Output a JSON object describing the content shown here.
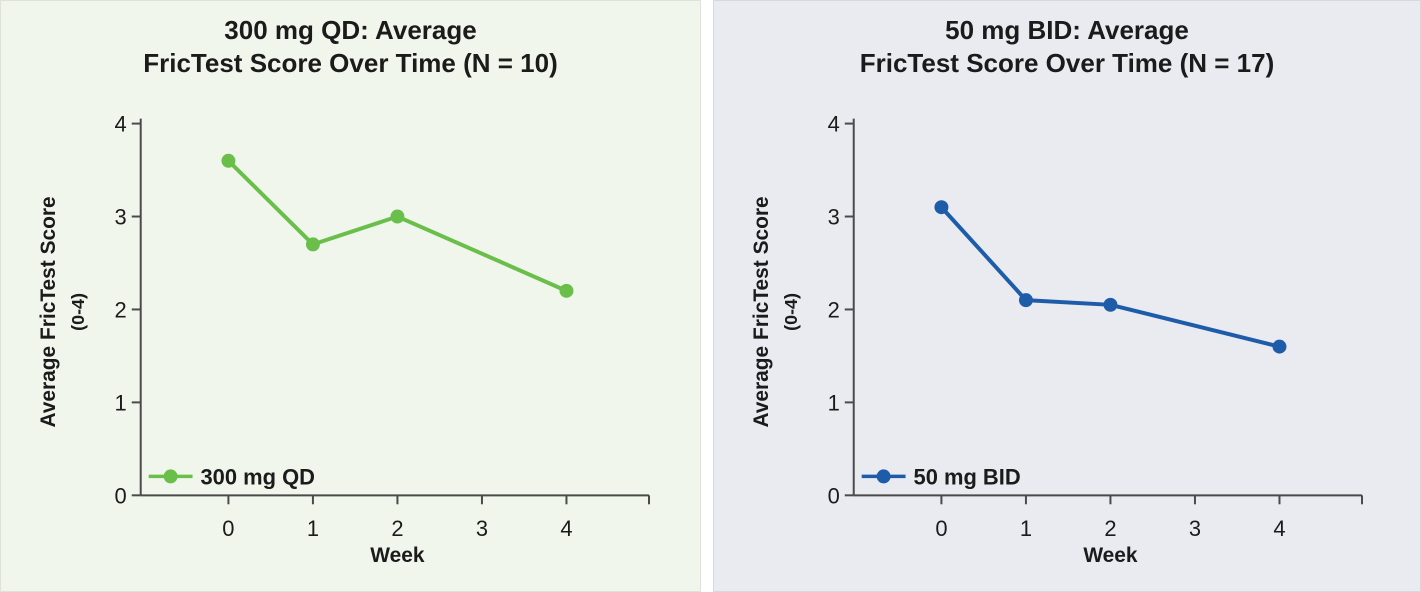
{
  "page": {
    "background": "#ffffff"
  },
  "chart_data": [
    {
      "type": "line",
      "title_line1": "300 mg QD: Average",
      "title_line2": "FricTest Score Over Time (N = 10)",
      "xlabel": "Week",
      "ylabel": "Average FricTest Score",
      "ylabel_sub": "(0-4)",
      "xticks": [
        "0",
        "1",
        "2",
        "3",
        "4"
      ],
      "yticks": [
        "0",
        "1",
        "2",
        "3",
        "4"
      ],
      "ylim": [
        0,
        4
      ],
      "grid": false,
      "legend": {
        "label": "300 mg QD",
        "position": "bottom-left"
      },
      "series": [
        {
          "name": "300 mg QD",
          "x": [
            0,
            1,
            2,
            4
          ],
          "values": [
            3.6,
            2.7,
            3.0,
            2.2
          ],
          "color": "#6abf4a"
        }
      ],
      "panel_background": "#f1f6ed",
      "axis_color": "#4a4a4a",
      "text_color": "#1b1b1b"
    },
    {
      "type": "line",
      "title_line1": "50 mg BID: Average",
      "title_line2": "FricTest Score Over Time (N = 17)",
      "xlabel": "Week",
      "ylabel": "Average FricTest Score",
      "ylabel_sub": "(0-4)",
      "xticks": [
        "0",
        "1",
        "2",
        "3",
        "4"
      ],
      "yticks": [
        "0",
        "1",
        "2",
        "3",
        "4"
      ],
      "ylim": [
        0,
        4
      ],
      "grid": false,
      "legend": {
        "label": "50 mg BID",
        "position": "bottom-left"
      },
      "series": [
        {
          "name": "50 mg BID",
          "x": [
            0,
            1,
            2,
            4
          ],
          "values": [
            3.1,
            2.1,
            2.05,
            1.6
          ],
          "color": "#1e5caa"
        }
      ],
      "panel_background": "#e9ebf1",
      "axis_color": "#4a4a4a",
      "text_color": "#1b1b1b"
    }
  ]
}
